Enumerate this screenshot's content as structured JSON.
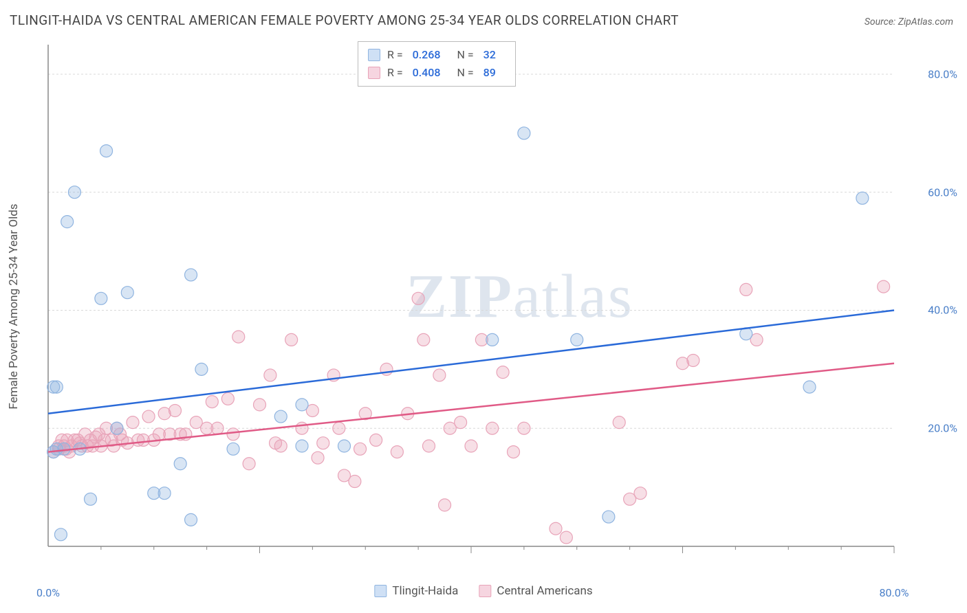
{
  "title": "TLINGIT-HAIDA VS CENTRAL AMERICAN FEMALE POVERTY AMONG 25-34 YEAR OLDS CORRELATION CHART",
  "source": "Source: ZipAtlas.com",
  "ylabel": "Female Poverty Among 25-34 Year Olds",
  "watermark_a": "ZIP",
  "watermark_b": "atlas",
  "chart": {
    "type": "scatter",
    "xlim": [
      0,
      80
    ],
    "ylim": [
      0,
      85
    ],
    "xtick_labels": {
      "0": "0.0%",
      "80": "80.0%"
    },
    "ytick_labels": {
      "20": "20.0%",
      "40": "40.0%",
      "60": "60.0%",
      "80": "80.0%"
    },
    "grid_color": "#d8d8d8",
    "grid_dash": "3,3",
    "axis_color": "#888888",
    "background_color": "#ffffff",
    "tick_label_color": "#4a7fc8",
    "marker_radius": 9,
    "marker_stroke_width": 1.2,
    "marker_fill_opacity": 0.35,
    "trend_line_width": 2.5,
    "series": [
      {
        "name": "Tlingit-Haida",
        "color": "#8fb4e0",
        "line_color": "#2a6ad8",
        "swatch_fill": "#cfe0f5",
        "r": "0.268",
        "n": "32",
        "trend": {
          "x1": 0,
          "y1": 22.5,
          "x2": 80,
          "y2": 40
        },
        "points": [
          [
            0.5,
            16
          ],
          [
            0.8,
            16.5
          ],
          [
            0.5,
            27
          ],
          [
            0.8,
            27
          ],
          [
            1.2,
            2
          ],
          [
            1.5,
            16.5
          ],
          [
            1.8,
            55
          ],
          [
            2.5,
            60
          ],
          [
            3,
            16.5
          ],
          [
            4,
            8
          ],
          [
            5.5,
            67
          ],
          [
            5,
            42
          ],
          [
            6.5,
            20
          ],
          [
            7.5,
            43
          ],
          [
            10,
            9
          ],
          [
            11,
            9
          ],
          [
            12.5,
            14
          ],
          [
            13.5,
            46
          ],
          [
            13.5,
            4.5
          ],
          [
            14.5,
            30
          ],
          [
            17.5,
            16.5
          ],
          [
            22,
            22
          ],
          [
            24,
            24
          ],
          [
            24,
            17
          ],
          [
            28,
            17
          ],
          [
            42,
            35
          ],
          [
            45,
            70
          ],
          [
            50,
            35
          ],
          [
            53,
            5
          ],
          [
            66,
            36
          ],
          [
            72,
            27
          ],
          [
            77,
            59
          ]
        ]
      },
      {
        "name": "Central Americans",
        "color": "#e8a3b8",
        "line_color": "#e05a86",
        "swatch_fill": "#f6d5e0",
        "r": "0.408",
        "n": "89",
        "trend": {
          "x1": 0,
          "y1": 16,
          "x2": 80,
          "y2": 31
        },
        "points": [
          [
            0.5,
            16
          ],
          [
            1,
            16.5
          ],
          [
            1,
            17
          ],
          [
            1.3,
            18
          ],
          [
            1.5,
            17
          ],
          [
            1.7,
            16.5
          ],
          [
            1.8,
            18
          ],
          [
            2,
            16
          ],
          [
            2.2,
            17
          ],
          [
            2.5,
            18
          ],
          [
            2.8,
            18
          ],
          [
            3,
            17.5
          ],
          [
            3.2,
            17
          ],
          [
            3.5,
            19
          ],
          [
            3.7,
            17
          ],
          [
            4,
            18
          ],
          [
            4.2,
            17
          ],
          [
            4.5,
            18.5
          ],
          [
            4.8,
            19
          ],
          [
            5,
            17
          ],
          [
            5.3,
            18
          ],
          [
            5.5,
            20
          ],
          [
            6,
            18
          ],
          [
            6.2,
            17
          ],
          [
            6.5,
            20
          ],
          [
            6.8,
            19
          ],
          [
            7,
            18
          ],
          [
            7.5,
            17.5
          ],
          [
            8,
            21
          ],
          [
            8.5,
            18
          ],
          [
            9,
            18
          ],
          [
            9.5,
            22
          ],
          [
            10,
            18
          ],
          [
            10.5,
            19
          ],
          [
            11,
            22.5
          ],
          [
            11.5,
            19
          ],
          [
            12,
            23
          ],
          [
            12.5,
            19
          ],
          [
            13,
            19
          ],
          [
            14,
            21
          ],
          [
            15,
            20
          ],
          [
            15.5,
            24.5
          ],
          [
            16,
            20
          ],
          [
            17,
            25
          ],
          [
            17.5,
            19
          ],
          [
            18,
            35.5
          ],
          [
            19,
            14
          ],
          [
            20,
            24
          ],
          [
            21,
            29
          ],
          [
            21.5,
            17.5
          ],
          [
            22,
            17
          ],
          [
            23,
            35
          ],
          [
            24,
            20
          ],
          [
            25,
            23
          ],
          [
            25.5,
            15
          ],
          [
            26,
            17.5
          ],
          [
            27,
            29
          ],
          [
            27.5,
            20
          ],
          [
            28,
            12
          ],
          [
            29,
            11
          ],
          [
            29.5,
            16.5
          ],
          [
            30,
            22.5
          ],
          [
            31,
            18
          ],
          [
            32,
            30
          ],
          [
            33,
            16
          ],
          [
            34,
            22.5
          ],
          [
            35,
            42
          ],
          [
            35.5,
            35
          ],
          [
            36,
            17
          ],
          [
            37,
            29
          ],
          [
            37.5,
            7
          ],
          [
            38,
            20
          ],
          [
            39,
            21
          ],
          [
            40,
            17
          ],
          [
            41,
            35
          ],
          [
            42,
            20
          ],
          [
            43,
            29.5
          ],
          [
            44,
            16
          ],
          [
            45,
            20
          ],
          [
            48,
            3
          ],
          [
            49,
            1.5
          ],
          [
            54,
            21
          ],
          [
            55,
            8
          ],
          [
            56,
            9
          ],
          [
            60,
            31
          ],
          [
            61,
            31.5
          ],
          [
            66,
            43.5
          ],
          [
            67,
            35
          ],
          [
            79,
            44
          ]
        ]
      }
    ],
    "bottom_legend": [
      {
        "swatch": "#cfe0f5",
        "border": "#8fb4e0",
        "label": "Tlingit-Haida"
      },
      {
        "swatch": "#f6d5e0",
        "border": "#e8a3b8",
        "label": "Central Americans"
      }
    ]
  }
}
